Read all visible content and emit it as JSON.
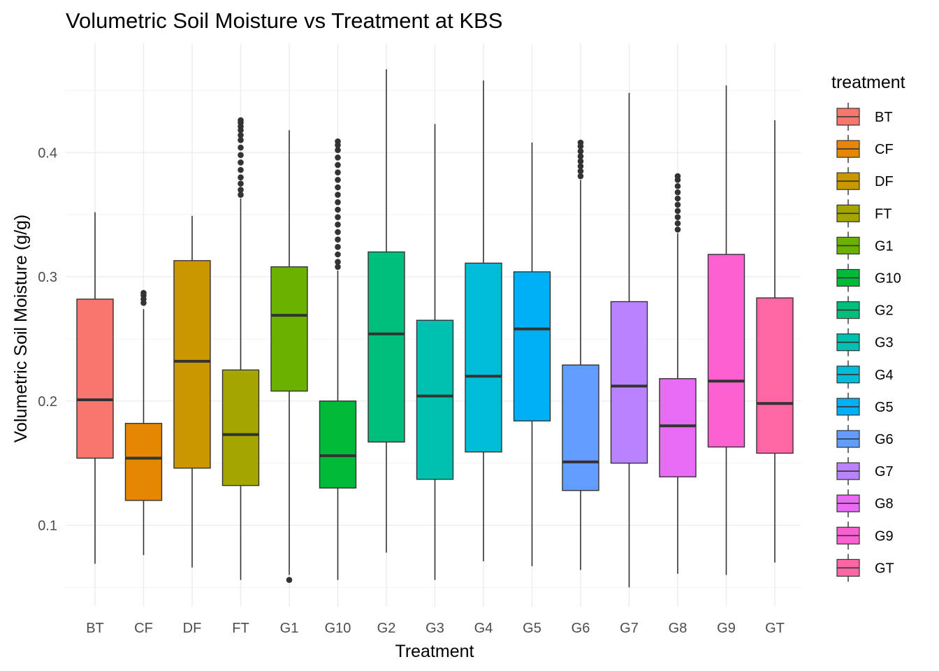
{
  "chart_data": {
    "type": "boxplot",
    "title": "Volumetric Soil Moisture vs Treatment at KBS",
    "xlabel": "Treatment",
    "ylabel": "Volumetric Soil Moisture (g/g)",
    "ylim": [
      0.03,
      0.48
    ],
    "y_ticks": [
      0.1,
      0.2,
      0.3,
      0.4
    ],
    "y_tick_labels": [
      "0.1",
      "0.2",
      "0.3",
      "0.4"
    ],
    "y_minor_ticks": [
      0.05,
      0.15,
      0.25,
      0.35,
      0.45
    ],
    "grid": true,
    "legend": {
      "title": "treatment",
      "position": "right"
    },
    "categories": [
      "BT",
      "CF",
      "DF",
      "FT",
      "G1",
      "G10",
      "G2",
      "G3",
      "G4",
      "G5",
      "G6",
      "G7",
      "G8",
      "G9",
      "GT"
    ],
    "colors": [
      "#F8766D",
      "#E58700",
      "#C99800",
      "#A3A500",
      "#6BB100",
      "#00BA38",
      "#00BF7D",
      "#00C0AF",
      "#00BCD8",
      "#00B0F6",
      "#619CFF",
      "#B983FF",
      "#E76BF3",
      "#FD61D1",
      "#FF67A4"
    ],
    "boxes": [
      {
        "name": "BT",
        "lower_whisker": 0.069,
        "q1": 0.154,
        "median": 0.201,
        "q3": 0.282,
        "upper_whisker": 0.352,
        "outliers": []
      },
      {
        "name": "CF",
        "lower_whisker": 0.076,
        "q1": 0.12,
        "median": 0.154,
        "q3": 0.182,
        "upper_whisker": 0.274,
        "outliers": [
          0.279,
          0.282,
          0.285,
          0.287
        ]
      },
      {
        "name": "DF",
        "lower_whisker": 0.066,
        "q1": 0.146,
        "median": 0.232,
        "q3": 0.313,
        "upper_whisker": 0.349,
        "outliers": []
      },
      {
        "name": "FT",
        "lower_whisker": 0.056,
        "q1": 0.132,
        "median": 0.173,
        "q3": 0.225,
        "upper_whisker": 0.363,
        "outliers": [
          0.366,
          0.37,
          0.375,
          0.38,
          0.386,
          0.392,
          0.398,
          0.404,
          0.41,
          0.414,
          0.418,
          0.421,
          0.424,
          0.426
        ]
      },
      {
        "name": "G1",
        "lower_whisker": 0.06,
        "q1": 0.208,
        "median": 0.269,
        "q3": 0.308,
        "upper_whisker": 0.418,
        "outliers": [
          0.056
        ]
      },
      {
        "name": "G10",
        "lower_whisker": 0.056,
        "q1": 0.13,
        "median": 0.156,
        "q3": 0.2,
        "upper_whisker": 0.305,
        "outliers": [
          0.308,
          0.312,
          0.318,
          0.324,
          0.33,
          0.336,
          0.342,
          0.348,
          0.354,
          0.36,
          0.366,
          0.372,
          0.378,
          0.384,
          0.39,
          0.396,
          0.402,
          0.406,
          0.409
        ]
      },
      {
        "name": "G2",
        "lower_whisker": 0.078,
        "q1": 0.167,
        "median": 0.254,
        "q3": 0.32,
        "upper_whisker": 0.467,
        "outliers": []
      },
      {
        "name": "G3",
        "lower_whisker": 0.056,
        "q1": 0.137,
        "median": 0.204,
        "q3": 0.265,
        "upper_whisker": 0.423,
        "outliers": []
      },
      {
        "name": "G4",
        "lower_whisker": 0.071,
        "q1": 0.159,
        "median": 0.22,
        "q3": 0.311,
        "upper_whisker": 0.458,
        "outliers": []
      },
      {
        "name": "G5",
        "lower_whisker": 0.067,
        "q1": 0.184,
        "median": 0.258,
        "q3": 0.304,
        "upper_whisker": 0.408,
        "outliers": []
      },
      {
        "name": "G6",
        "lower_whisker": 0.064,
        "q1": 0.128,
        "median": 0.151,
        "q3": 0.229,
        "upper_whisker": 0.378,
        "outliers": [
          0.381,
          0.385,
          0.389,
          0.393,
          0.397,
          0.401,
          0.405,
          0.408
        ]
      },
      {
        "name": "G7",
        "lower_whisker": 0.05,
        "q1": 0.15,
        "median": 0.212,
        "q3": 0.28,
        "upper_whisker": 0.448,
        "outliers": []
      },
      {
        "name": "G8",
        "lower_whisker": 0.061,
        "q1": 0.139,
        "median": 0.18,
        "q3": 0.218,
        "upper_whisker": 0.335,
        "outliers": [
          0.338,
          0.343,
          0.348,
          0.353,
          0.358,
          0.363,
          0.368,
          0.373,
          0.378,
          0.381
        ]
      },
      {
        "name": "G9",
        "lower_whisker": 0.06,
        "q1": 0.163,
        "median": 0.216,
        "q3": 0.318,
        "upper_whisker": 0.454,
        "outliers": []
      },
      {
        "name": "GT",
        "lower_whisker": 0.07,
        "q1": 0.158,
        "median": 0.198,
        "q3": 0.283,
        "upper_whisker": 0.426,
        "outliers": []
      }
    ]
  }
}
